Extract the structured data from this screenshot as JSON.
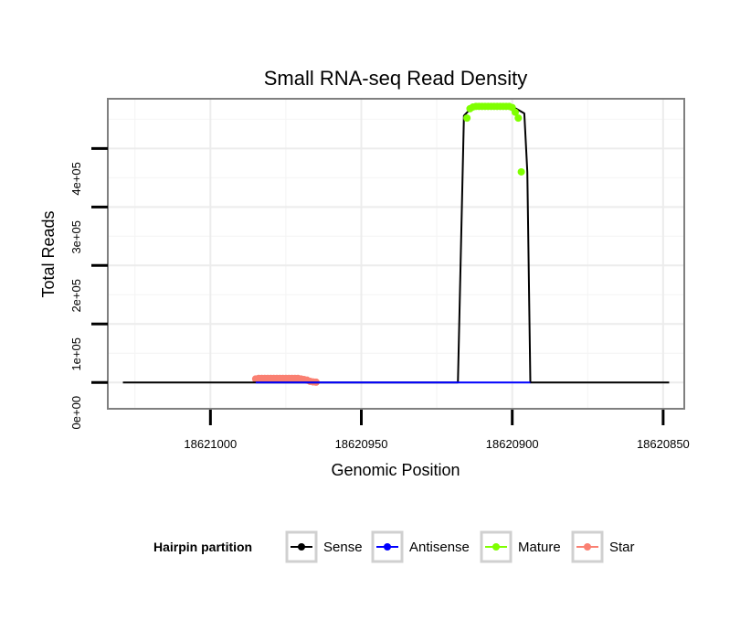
{
  "chart_data": {
    "type": "line",
    "title": "Small RNA-seq Read Density",
    "xlabel": "Genomic Position",
    "ylabel": "Total Reads",
    "x_reversed": true,
    "xlim": [
      18621034,
      18620843
    ],
    "ylim": [
      -45000,
      485000
    ],
    "x_ticks": [
      18621000,
      18620950,
      18620900,
      18620850
    ],
    "x_tick_labels": [
      "18621000",
      "18620950",
      "18620900",
      "18620850"
    ],
    "y_ticks": [
      0,
      100000,
      200000,
      300000,
      400000
    ],
    "y_tick_labels": [
      "0e+00",
      "1e+05",
      "2e+05",
      "3e+05",
      "4e+05"
    ],
    "grid": true,
    "legend": {
      "title": "Hairpin partition",
      "position": "bottom",
      "entries": [
        {
          "name": "Sense",
          "color": "#000000"
        },
        {
          "name": "Antisense",
          "color": "#0000ff"
        },
        {
          "name": "Mature",
          "color": "#7fff00"
        },
        {
          "name": "Star",
          "color": "#fa8072"
        }
      ]
    },
    "series": [
      {
        "name": "Sense",
        "color": "#000000",
        "style": "line",
        "points": [
          [
            18621029,
            0
          ],
          [
            18620918,
            0
          ],
          [
            18620916,
            456000
          ],
          [
            18620913,
            472000
          ],
          [
            18620900,
            472000
          ],
          [
            18620896,
            460000
          ],
          [
            18620895,
            360000
          ],
          [
            18620894,
            0
          ],
          [
            18620848,
            0
          ]
        ]
      },
      {
        "name": "Antisense",
        "color": "#0000ff",
        "style": "line",
        "points": [
          [
            18620985,
            0
          ],
          [
            18620964,
            0
          ],
          [
            18620918,
            0
          ],
          [
            18620894,
            0
          ]
        ]
      },
      {
        "name": "Mature",
        "color": "#7fff00",
        "style": "points",
        "points": [
          [
            18620915,
            452000
          ],
          [
            18620914,
            468000
          ],
          [
            18620913,
            471000
          ],
          [
            18620912,
            472000
          ],
          [
            18620911,
            472000
          ],
          [
            18620910,
            472000
          ],
          [
            18620909,
            472000
          ],
          [
            18620908,
            472000
          ],
          [
            18620907,
            472000
          ],
          [
            18620906,
            472000
          ],
          [
            18620905,
            472000
          ],
          [
            18620904,
            472000
          ],
          [
            18620903,
            472000
          ],
          [
            18620902,
            472000
          ],
          [
            18620901,
            472000
          ],
          [
            18620900,
            470000
          ],
          [
            18620899,
            462000
          ],
          [
            18620898,
            452000
          ],
          [
            18620897,
            360000
          ]
        ]
      },
      {
        "name": "Star",
        "color": "#fa8072",
        "style": "points",
        "points": [
          [
            18620985,
            6000
          ],
          [
            18620984,
            7000
          ],
          [
            18620983,
            7000
          ],
          [
            18620982,
            7000
          ],
          [
            18620981,
            7000
          ],
          [
            18620980,
            7000
          ],
          [
            18620979,
            7000
          ],
          [
            18620978,
            7000
          ],
          [
            18620977,
            7000
          ],
          [
            18620976,
            7000
          ],
          [
            18620975,
            7000
          ],
          [
            18620974,
            7000
          ],
          [
            18620973,
            7000
          ],
          [
            18620972,
            7000
          ],
          [
            18620971,
            7000
          ],
          [
            18620970,
            6000
          ],
          [
            18620969,
            5000
          ],
          [
            18620968,
            4000
          ],
          [
            18620967,
            2000
          ],
          [
            18620966,
            1000
          ],
          [
            18620965,
            500
          ]
        ]
      }
    ]
  }
}
